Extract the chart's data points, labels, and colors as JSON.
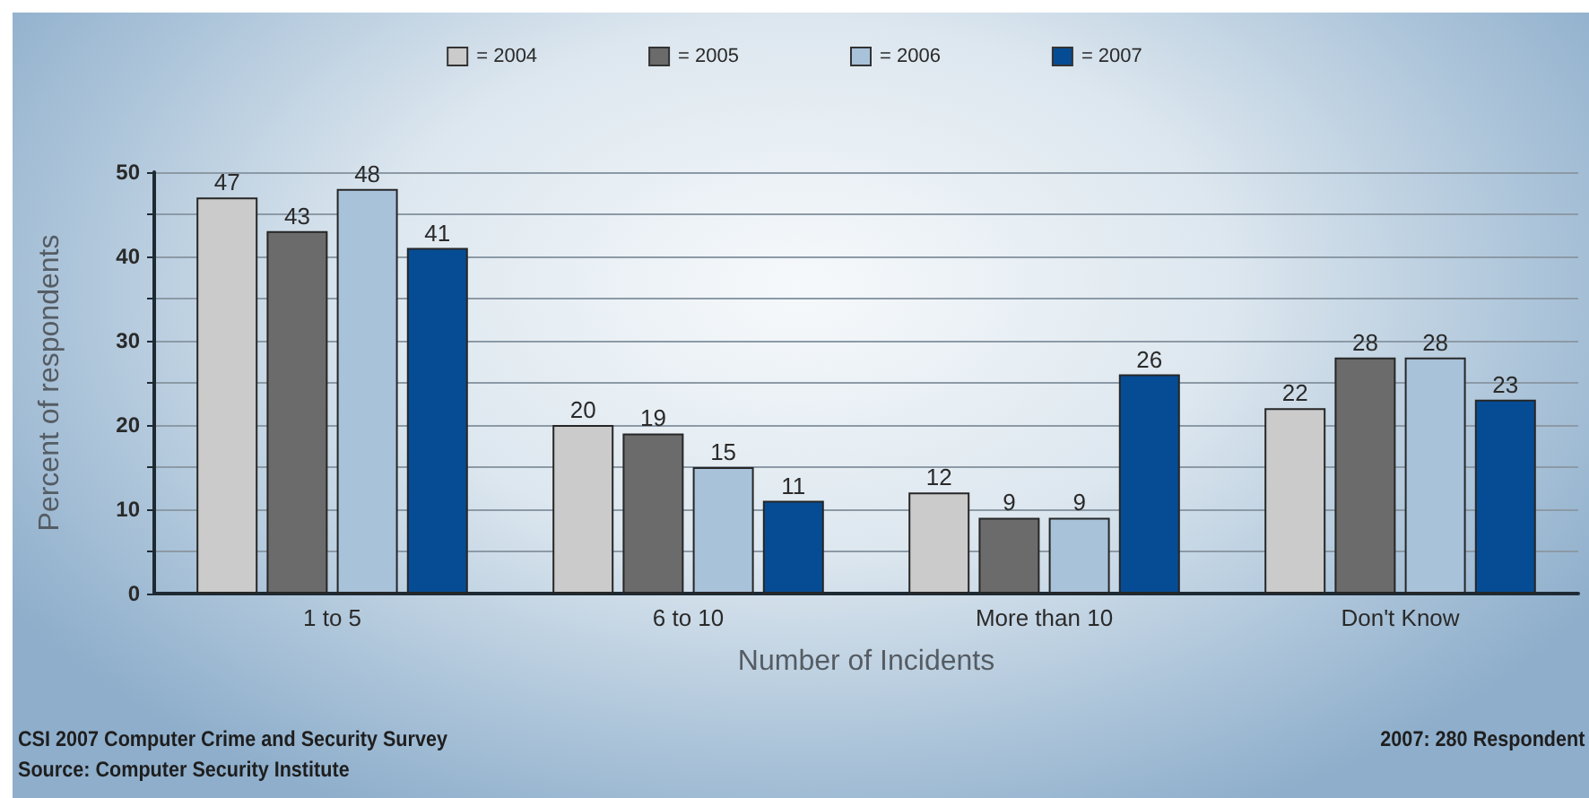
{
  "chart_data": {
    "type": "bar",
    "xlabel": "Number of Incidents",
    "ylabel": "Percent of respondents",
    "categories": [
      "1 to 5",
      "6 to 10",
      "More than 10",
      "Don't Know"
    ],
    "series": [
      {
        "name": "= 2004",
        "color": "#cbcbcb",
        "values": [
          47,
          20,
          12,
          22
        ]
      },
      {
        "name": "= 2005",
        "color": "#6b6b6b",
        "values": [
          43,
          19,
          9,
          28
        ]
      },
      {
        "name": "= 2006",
        "color": "#a8c2da",
        "values": [
          48,
          15,
          9,
          28
        ]
      },
      {
        "name": "= 2007",
        "color": "#064c94",
        "values": [
          41,
          11,
          26,
          23
        ]
      }
    ],
    "ylim": [
      0,
      50
    ],
    "yticks": [
      0,
      {
        "value": 5,
        "label": null
      },
      10,
      {
        "value": 15,
        "label": null
      },
      20,
      {
        "value": 25,
        "label": null
      },
      30,
      {
        "value": 35,
        "label": null
      },
      40,
      {
        "value": 45,
        "label": null
      },
      50
    ],
    "grid": "y",
    "legend": "top",
    "data_labels": true,
    "annotations": [
      "CSI 2007 Computer Crime and Security Survey",
      "Source: Computer Security Institute",
      "2007: 280 Respondent"
    ]
  }
}
